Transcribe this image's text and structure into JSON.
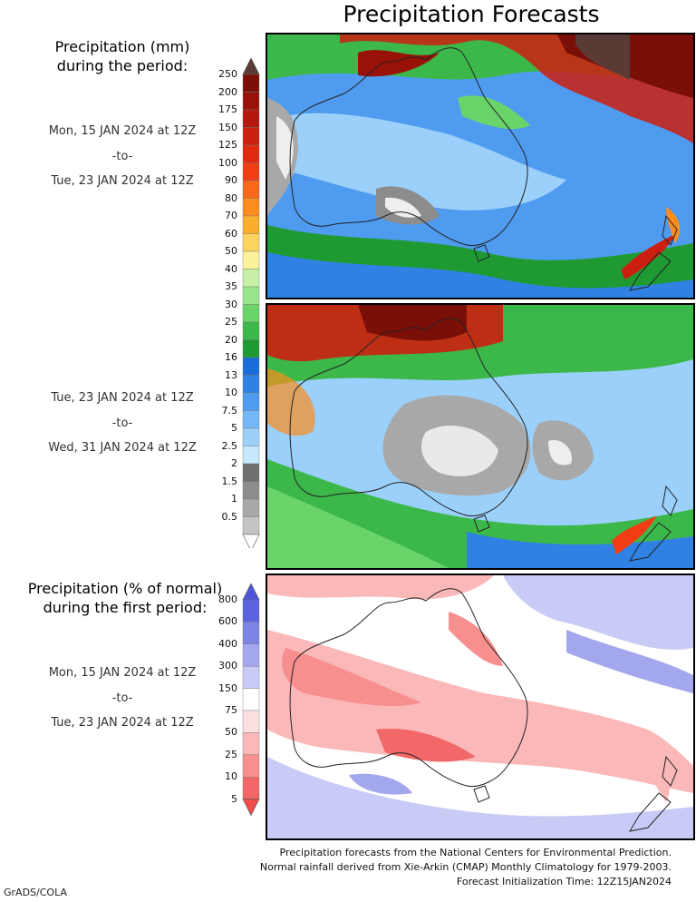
{
  "title": "Precipitation Forecasts",
  "legend_amount": {
    "title_lines": [
      "Precipitation (mm)",
      "during the period:"
    ],
    "ticks": [
      "250",
      "200",
      "175",
      "150",
      "125",
      "100",
      "90",
      "80",
      "70",
      "60",
      "50",
      "40",
      "35",
      "30",
      "25",
      "20",
      "16",
      "13",
      "10",
      "7.5",
      "5",
      "2.5",
      "2",
      "1.5",
      "1",
      "0.5"
    ],
    "colors": [
      "#7a0f08",
      "#98120a",
      "#b5170c",
      "#cc1f10",
      "#e22a12",
      "#f23d14",
      "#f9661c",
      "#fb8d1e",
      "#fbae2a",
      "#fcd35e",
      "#fdf29c",
      "#c7f0a6",
      "#96e58b",
      "#6ad46b",
      "#3cb84a",
      "#1f9a33",
      "#1a6dd6",
      "#2f82e4",
      "#4f9bf0",
      "#75b6f6",
      "#9bd0fb",
      "#c6e8fd",
      "#6e6e6e",
      "#8c8c8c",
      "#a8a8a8",
      "#c4c4c4"
    ],
    "top_cap_color": "#5a3a34"
  },
  "period1": {
    "start": "Mon, 15 JAN 2024 at 12Z",
    "sep": "-to-",
    "end": "Tue, 23 JAN 2024 at 12Z"
  },
  "period2": {
    "start": "Tue, 23 JAN 2024 at 12Z",
    "sep": "-to-",
    "end": "Wed, 31 JAN 2024 at 12Z"
  },
  "legend_percent": {
    "title_lines": [
      "Precipitation (% of normal)",
      "during the first period:"
    ],
    "ticks": [
      "800",
      "600",
      "400",
      "300",
      "150",
      "75",
      "50",
      "25",
      "10",
      "5"
    ],
    "colors": [
      "#5b63dd",
      "#7d84e4",
      "#a3a8ee",
      "#c8cbf6",
      "#ffffff",
      "#fde0e0",
      "#fbb8b8",
      "#f78f8f",
      "#f26868"
    ],
    "top_cap_color": "#4d55d8",
    "bottom_cap_color": "#ee4b4b"
  },
  "period3": {
    "start": "Mon, 15 JAN 2024 at 12Z",
    "sep": "-to-",
    "end": "Tue, 23 JAN 2024 at 12Z"
  },
  "footer": {
    "line1": "Precipitation forecasts from the National Centers for Environmental Prediction.",
    "line2": "Normal rainfall derived from Xie-Arkin (CMAP) Monthly Climatology for 1979-2003.",
    "line3": "Forecast Initialization Time: 12Z15JAN2024"
  },
  "credit": "GrADS/COLA"
}
